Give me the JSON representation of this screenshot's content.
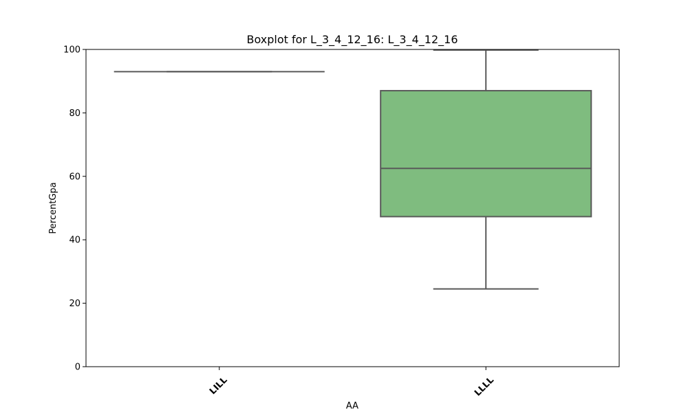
{
  "chart_data": {
    "type": "box",
    "title": "Boxplot for L_3_4_12_16: L_3_4_12_16",
    "xlabel": "AA",
    "ylabel": "PercentGpa",
    "ylim": [
      0,
      100
    ],
    "yticks": [
      0,
      20,
      40,
      60,
      80,
      100
    ],
    "grid": false,
    "categories": [
      "LILL",
      "LLLL"
    ],
    "boxes": [
      {
        "category": "LILL",
        "min": 93,
        "q1": 93,
        "median": 93,
        "q3": 93,
        "max": 93,
        "color": ""
      },
      {
        "category": "LLLL",
        "min": 24.5,
        "q1": 47.3,
        "median": 62.5,
        "q3": 87,
        "max": 99.8,
        "color": "#7fbc7f"
      }
    ]
  }
}
